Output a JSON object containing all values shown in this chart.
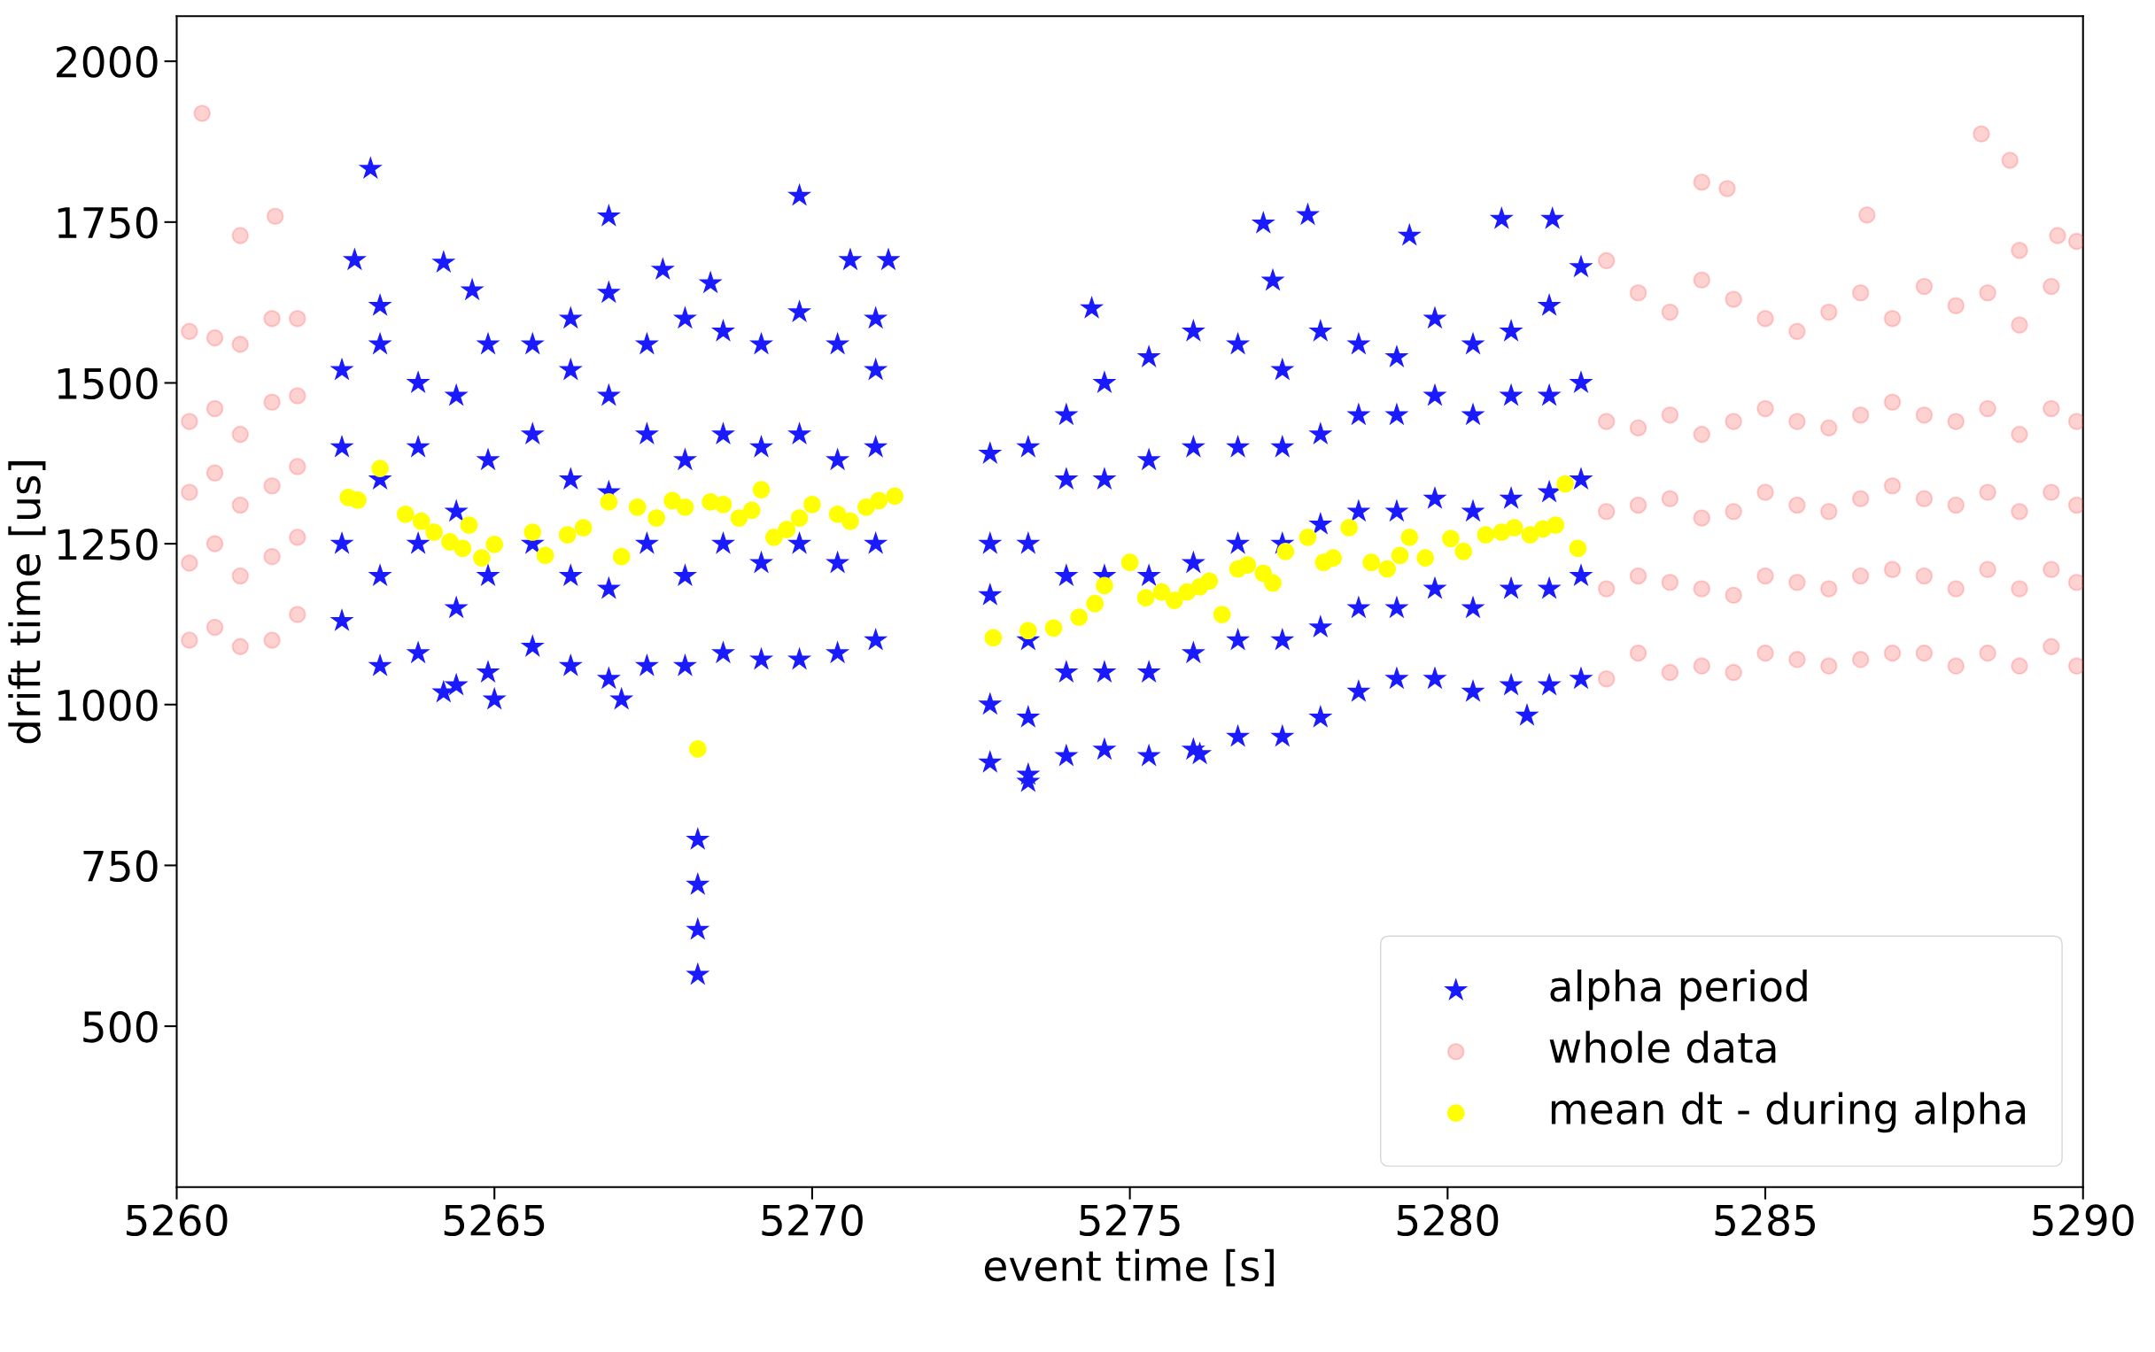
{
  "chart_data": {
    "type": "scatter",
    "xlabel": "event time [s]",
    "ylabel": "drift time [us]",
    "xlim": [
      5260,
      5290
    ],
    "xticks": [
      5260,
      5265,
      5270,
      5275,
      5280,
      5285,
      5290
    ],
    "ylim": [
      250,
      2070
    ],
    "yticks": [
      500,
      750,
      1000,
      1250,
      1500,
      1750,
      2000
    ],
    "grid": false,
    "legend": "bottom right",
    "series": [
      {
        "name": "alpha period",
        "color": "#1a1aff",
        "marker": "star",
        "x": [
          5262.6,
          5262.6,
          5262.6,
          5262.6,
          5263.2,
          5263.2,
          5263.2,
          5263.2,
          5263.2,
          5263.8,
          5263.8,
          5263.8,
          5263.8,
          5264.4,
          5264.4,
          5264.4,
          5264.4,
          5264.9,
          5264.9,
          5264.9,
          5264.9,
          5265.6,
          5265.6,
          5265.6,
          5265.6,
          5266.2,
          5266.2,
          5266.2,
          5266.2,
          5266.2,
          5266.8,
          5266.8,
          5266.8,
          5266.8,
          5266.8,
          5267.4,
          5267.4,
          5267.4,
          5267.4,
          5268.0,
          5268.0,
          5268.0,
          5268.0,
          5268.6,
          5268.6,
          5268.6,
          5268.6,
          5269.2,
          5269.2,
          5269.2,
          5269.2,
          5269.8,
          5269.8,
          5269.8,
          5269.8,
          5270.4,
          5270.4,
          5270.4,
          5270.4,
          5271.0,
          5271.0,
          5271.0,
          5271.0,
          5271.0,
          5268.2,
          5268.2,
          5268.2,
          5268.2,
          5263.05,
          5262.8,
          5264.2,
          5264.65,
          5266.8,
          5269.8,
          5267.65,
          5268.4,
          5270.6,
          5271.2,
          5267.0,
          5264.2,
          5265.0,
          5272.8,
          5272.8,
          5272.8,
          5272.8,
          5272.8,
          5273.4,
          5273.4,
          5273.4,
          5273.4,
          5273.4,
          5274.0,
          5274.0,
          5274.0,
          5274.0,
          5274.0,
          5274.6,
          5274.6,
          5274.6,
          5274.6,
          5274.6,
          5275.3,
          5275.3,
          5275.3,
          5275.3,
          5275.3,
          5276.0,
          5276.0,
          5276.0,
          5276.0,
          5276.0,
          5276.7,
          5276.7,
          5276.7,
          5276.7,
          5276.7,
          5277.4,
          5277.4,
          5277.4,
          5277.4,
          5277.4,
          5278.0,
          5278.0,
          5278.0,
          5278.0,
          5278.0,
          5278.6,
          5278.6,
          5278.6,
          5278.6,
          5278.6,
          5279.2,
          5279.2,
          5279.2,
          5279.2,
          5279.2,
          5279.8,
          5279.8,
          5279.8,
          5279.8,
          5279.8,
          5280.4,
          5280.4,
          5280.4,
          5280.4,
          5280.4,
          5281.0,
          5281.0,
          5281.0,
          5281.0,
          5281.0,
          5281.6,
          5281.6,
          5281.6,
          5281.6,
          5281.6,
          5282.1,
          5282.1,
          5282.1,
          5282.1,
          5282.1,
          5274.4,
          5277.1,
          5277.8,
          5279.4,
          5280.85,
          5281.65,
          5277.25,
          5281.25,
          5273.4,
          5276.1
        ],
        "values": [
          1130,
          1250,
          1400,
          1520,
          1060,
          1200,
          1350,
          1560,
          1620,
          1080,
          1250,
          1400,
          1500,
          1030,
          1150,
          1300,
          1480,
          1050,
          1200,
          1380,
          1560,
          1090,
          1250,
          1420,
          1560,
          1060,
          1200,
          1350,
          1520,
          1600,
          1040,
          1180,
          1330,
          1480,
          1640,
          1060,
          1250,
          1420,
          1560,
          1060,
          1200,
          1380,
          1600,
          1080,
          1250,
          1420,
          1580,
          1070,
          1220,
          1400,
          1560,
          1070,
          1250,
          1420,
          1610,
          1080,
          1220,
          1380,
          1560,
          1100,
          1250,
          1400,
          1520,
          1600,
          580,
          650,
          720,
          790,
          1833,
          1691,
          1687,
          1644,
          1759,
          1791,
          1676,
          1655,
          1691,
          1691,
          1008,
          1019,
          1008,
          910,
          1000,
          1170,
          1250,
          1390,
          880,
          980,
          1100,
          1250,
          1400,
          920,
          1050,
          1200,
          1350,
          1450,
          930,
          1050,
          1200,
          1350,
          1500,
          920,
          1050,
          1200,
          1380,
          1540,
          930,
          1080,
          1220,
          1400,
          1580,
          950,
          1100,
          1250,
          1400,
          1560,
          950,
          1100,
          1250,
          1400,
          1520,
          980,
          1120,
          1280,
          1420,
          1580,
          1020,
          1150,
          1300,
          1450,
          1560,
          1040,
          1150,
          1300,
          1450,
          1540,
          1040,
          1180,
          1320,
          1480,
          1600,
          1020,
          1150,
          1300,
          1450,
          1560,
          1030,
          1180,
          1320,
          1480,
          1580,
          1030,
          1180,
          1330,
          1480,
          1620,
          1040,
          1200,
          1350,
          1500,
          1680,
          1616,
          1748,
          1761,
          1729,
          1755,
          1755,
          1659,
          983,
          891,
          923
        ]
      },
      {
        "name": "whole data",
        "color": "#ff4d4d",
        "marker": "circle",
        "x": [
          5260.2,
          5260.2,
          5260.2,
          5260.2,
          5260.2,
          5260.6,
          5260.6,
          5260.6,
          5260.6,
          5260.6,
          5261.0,
          5261.0,
          5261.0,
          5261.0,
          5261.0,
          5261.5,
          5261.5,
          5261.5,
          5261.5,
          5261.5,
          5261.9,
          5261.9,
          5261.9,
          5261.9,
          5261.9,
          5282.5,
          5282.5,
          5282.5,
          5282.5,
          5282.5,
          5283.0,
          5283.0,
          5283.0,
          5283.0,
          5283.0,
          5283.5,
          5283.5,
          5283.5,
          5283.5,
          5283.5,
          5284.0,
          5284.0,
          5284.0,
          5284.0,
          5284.0,
          5284.5,
          5284.5,
          5284.5,
          5284.5,
          5284.5,
          5285.0,
          5285.0,
          5285.0,
          5285.0,
          5285.0,
          5285.5,
          5285.5,
          5285.5,
          5285.5,
          5285.5,
          5286.0,
          5286.0,
          5286.0,
          5286.0,
          5286.0,
          5286.5,
          5286.5,
          5286.5,
          5286.5,
          5286.5,
          5287.0,
          5287.0,
          5287.0,
          5287.0,
          5287.0,
          5287.5,
          5287.5,
          5287.5,
          5287.5,
          5287.5,
          5288.0,
          5288.0,
          5288.0,
          5288.0,
          5288.0,
          5288.5,
          5288.5,
          5288.5,
          5288.5,
          5288.5,
          5289.0,
          5289.0,
          5289.0,
          5289.0,
          5289.0,
          5289.5,
          5289.5,
          5289.5,
          5289.5,
          5289.5,
          5289.9,
          5289.9,
          5289.9,
          5289.9,
          5289.9,
          5260.4,
          5261.0,
          5261.55,
          5284.0,
          5284.4,
          5288.4,
          5288.85,
          5286.6,
          5289.0,
          5289.6
        ],
        "values": [
          1100,
          1220,
          1330,
          1440,
          1580,
          1120,
          1250,
          1360,
          1460,
          1570,
          1090,
          1200,
          1310,
          1420,
          1560,
          1100,
          1230,
          1340,
          1470,
          1600,
          1140,
          1260,
          1370,
          1480,
          1600,
          1040,
          1180,
          1300,
          1440,
          1690,
          1080,
          1200,
          1310,
          1430,
          1640,
          1050,
          1190,
          1320,
          1450,
          1610,
          1060,
          1180,
          1290,
          1420,
          1660,
          1050,
          1170,
          1300,
          1440,
          1630,
          1080,
          1200,
          1330,
          1460,
          1600,
          1070,
          1190,
          1310,
          1440,
          1580,
          1060,
          1180,
          1300,
          1430,
          1610,
          1070,
          1200,
          1320,
          1450,
          1640,
          1080,
          1210,
          1340,
          1470,
          1600,
          1080,
          1200,
          1320,
          1450,
          1650,
          1060,
          1180,
          1310,
          1440,
          1620,
          1080,
          1210,
          1330,
          1460,
          1640,
          1060,
          1180,
          1300,
          1420,
          1590,
          1090,
          1210,
          1330,
          1460,
          1650,
          1060,
          1190,
          1310,
          1440,
          1720,
          1919,
          1729,
          1759,
          1812,
          1802,
          1887,
          1846,
          1761,
          1706,
          1729
        ]
      },
      {
        "name": "mean dt - during alpha",
        "color": "#ffff00",
        "marker": "circle",
        "x": [
          5262.7,
          5262.85,
          5263.2,
          5263.6,
          5263.85,
          5264.05,
          5264.3,
          5264.5,
          5264.6,
          5264.8,
          5265.0,
          5265.6,
          5265.8,
          5266.15,
          5266.4,
          5266.8,
          5267.0,
          5267.25,
          5267.55,
          5267.8,
          5268.0,
          5268.2,
          5268.4,
          5268.6,
          5268.85,
          5269.05,
          5269.2,
          5269.4,
          5269.6,
          5269.8,
          5270.0,
          5270.4,
          5270.6,
          5270.85,
          5271.05,
          5271.3,
          5272.85,
          5273.4,
          5273.8,
          5274.2,
          5274.45,
          5274.6,
          5275.0,
          5275.25,
          5275.5,
          5275.7,
          5275.9,
          5276.1,
          5276.25,
          5276.45,
          5276.7,
          5276.85,
          5277.1,
          5277.25,
          5277.45,
          5277.8,
          5278.05,
          5278.2,
          5278.45,
          5278.8,
          5279.05,
          5279.25,
          5279.4,
          5279.65,
          5280.05,
          5280.25,
          5280.6,
          5280.85,
          5281.05,
          5281.3,
          5281.5,
          5281.7,
          5281.85,
          5282.05
        ],
        "values": [
          1322,
          1318,
          1367,
          1296,
          1285,
          1268,
          1253,
          1243,
          1279,
          1228,
          1249,
          1268,
          1232,
          1264,
          1275,
          1315,
          1230,
          1307,
          1290,
          1317,
          1307,
          931,
          1315,
          1311,
          1290,
          1302,
          1334,
          1260,
          1272,
          1290,
          1311,
          1296,
          1285,
          1307,
          1317,
          1324,
          1104,
          1115,
          1119,
          1136,
          1157,
          1185,
          1221,
          1166,
          1175,
          1162,
          1175,
          1183,
          1192,
          1140,
          1211,
          1217,
          1204,
          1189,
          1238,
          1260,
          1221,
          1228,
          1275,
          1221,
          1211,
          1232,
          1260,
          1228,
          1258,
          1238,
          1264,
          1268,
          1275,
          1264,
          1273,
          1279,
          1343,
          1243
        ]
      }
    ]
  }
}
